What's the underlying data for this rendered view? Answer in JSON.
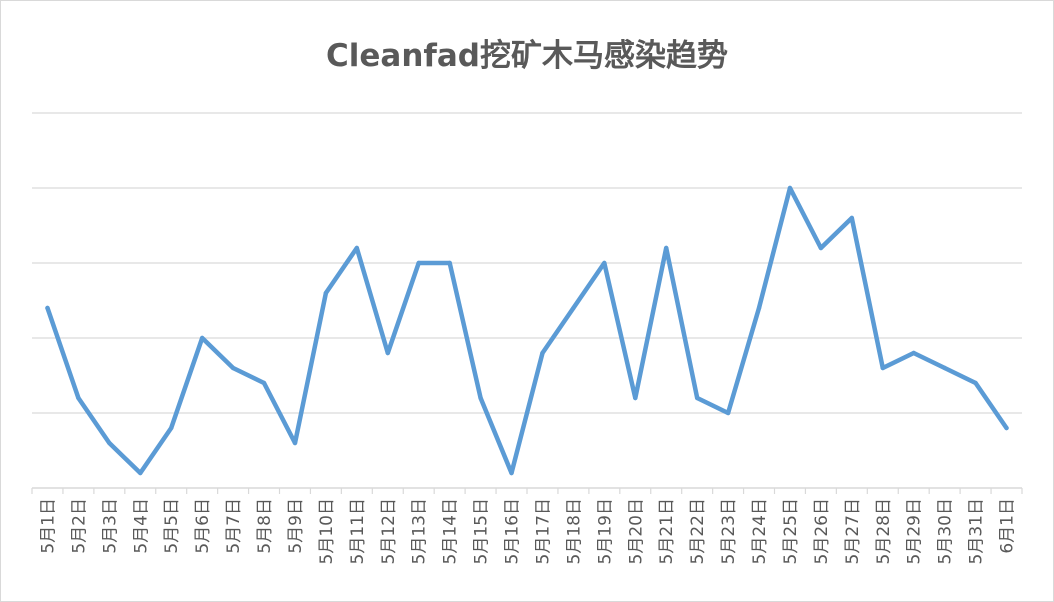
{
  "chart_data": {
    "type": "line",
    "title": "Cleanfad挖矿木马感染趋势",
    "categories": [
      "5月1日",
      "5月2日",
      "5月3日",
      "5月4日",
      "5月5日",
      "5月6日",
      "5月7日",
      "5月8日",
      "5月9日",
      "5月10日",
      "5月11日",
      "5月12日",
      "5月13日",
      "5月14日",
      "5月15日",
      "5月16日",
      "5月17日",
      "5月18日",
      "5月19日",
      "5月20日",
      "5月21日",
      "5月22日",
      "5月23日",
      "5月24日",
      "5月25日",
      "5月26日",
      "5月27日",
      "5月28日",
      "5月29日",
      "5月30日",
      "5月31日",
      "6月1日"
    ],
    "series": [
      {
        "values": [
          2.4,
          1.2,
          0.6,
          0.2,
          0.8,
          2.0,
          1.6,
          1.4,
          0.6,
          2.6,
          3.2,
          1.8,
          3.0,
          3.0,
          1.2,
          0.2,
          1.8,
          2.4,
          3.0,
          1.2,
          3.2,
          1.2,
          1.0,
          2.4,
          4.0,
          3.2,
          3.6,
          1.6,
          1.8,
          1.6,
          1.4,
          0.8
        ]
      }
    ],
    "ylim": [
      0,
      5
    ],
    "gridlines": 5,
    "ytick_labels_shown": false,
    "legend": "none",
    "line_color": "#5b9bd5",
    "grid_color": "#d9d9d9"
  }
}
